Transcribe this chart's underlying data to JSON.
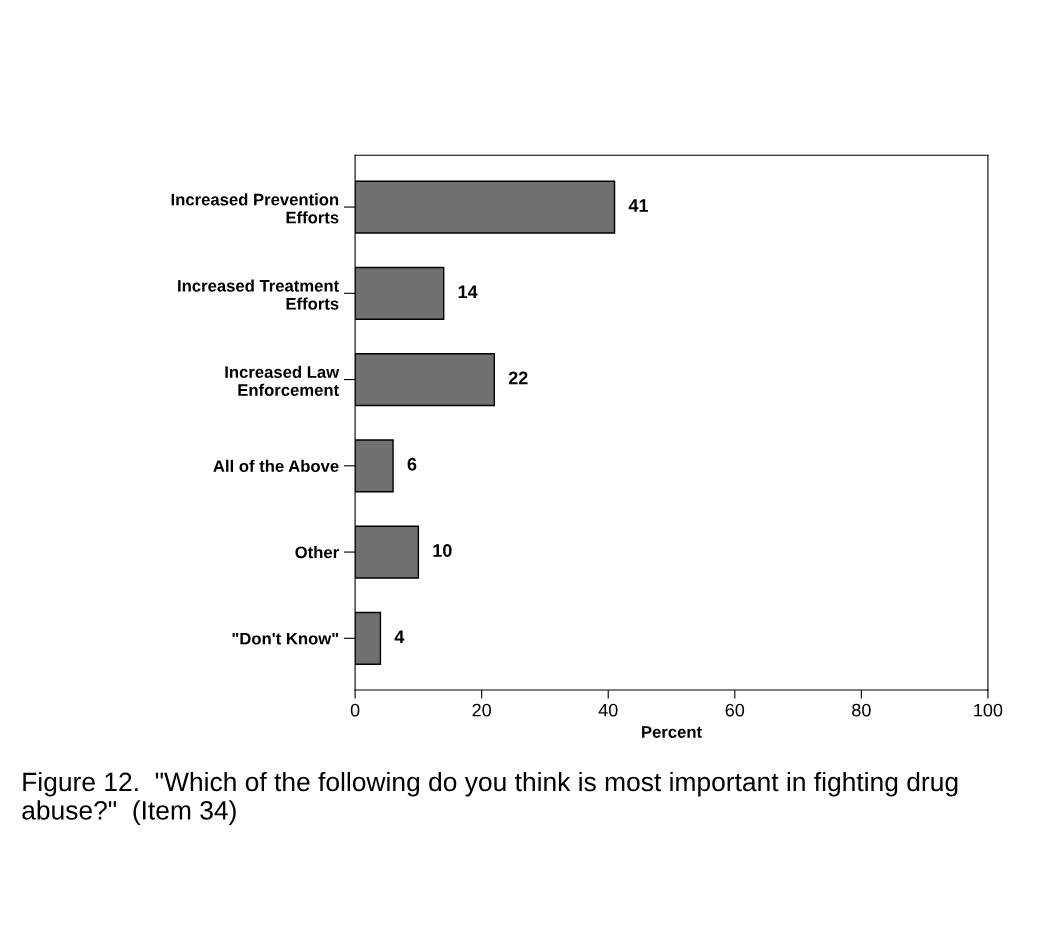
{
  "chart_data": {
    "type": "bar",
    "orientation": "horizontal",
    "categories": [
      "Increased Prevention\nEfforts",
      "Increased Treatment\nEfforts",
      "Increased Law\nEnforcement",
      "All of the Above",
      "Other",
      "\"Don't Know\""
    ],
    "values": [
      41,
      14,
      22,
      6,
      10,
      4
    ],
    "color": "#707070",
    "xlabel": "Percent",
    "xlim": [
      0,
      100
    ],
    "xticks": [
      0,
      20,
      40,
      60,
      80,
      100
    ],
    "data_labels": true,
    "grid": false,
    "legend": false,
    "annotations": [
      "Figure 12.  \"Which of the following do you think is most important in fighting drug abuse?\"  (Item 34)"
    ]
  }
}
